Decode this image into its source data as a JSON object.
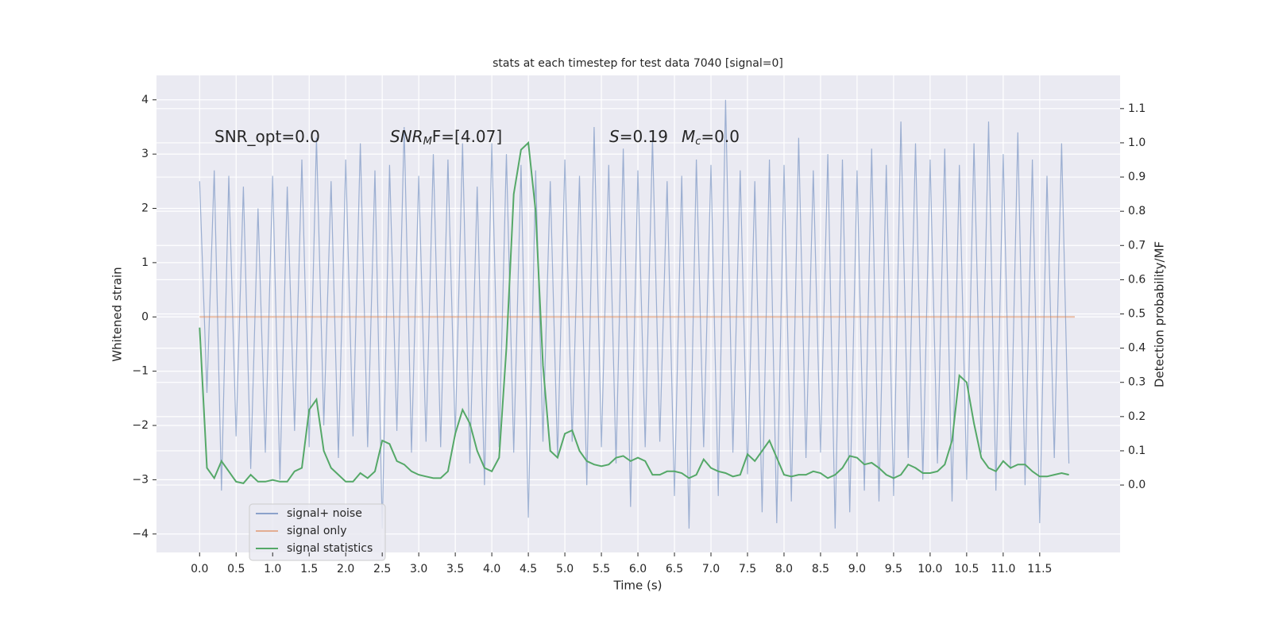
{
  "chart_data": {
    "type": "line",
    "title": "stats at each timestep for test data 7040 [signal=0]",
    "xlabel": "Time (s)",
    "ylabel": "Whitened strain",
    "y2label": "Detection probability/MF",
    "annotations": [
      {
        "base": "SNR_opt=0.0"
      },
      {
        "base": "SNR",
        "sub": "M",
        "tail": "F=[4.07]"
      },
      {
        "base": "S",
        "tail": "=0.19"
      },
      {
        "base": "M",
        "sub": "c",
        "tail": "=0.0"
      }
    ],
    "x": [
      0,
      0.1,
      0.2,
      0.3,
      0.4,
      0.5,
      0.6,
      0.7,
      0.8,
      0.9,
      1.0,
      1.1,
      1.2,
      1.3,
      1.4,
      1.5,
      1.6,
      1.7,
      1.8,
      1.9,
      2.0,
      2.1,
      2.2,
      2.3,
      2.4,
      2.5,
      2.6,
      2.7,
      2.8,
      2.9,
      3.0,
      3.1,
      3.2,
      3.3,
      3.4,
      3.5,
      3.6,
      3.7,
      3.8,
      3.9,
      4.0,
      4.1,
      4.2,
      4.3,
      4.4,
      4.5,
      4.6,
      4.7,
      4.8,
      4.9,
      5.0,
      5.1,
      5.2,
      5.3,
      5.4,
      5.5,
      5.6,
      5.7,
      5.8,
      5.9,
      6.0,
      6.1,
      6.2,
      6.3,
      6.4,
      6.5,
      6.6,
      6.7,
      6.8,
      6.9,
      7.0,
      7.1,
      7.2,
      7.3,
      7.4,
      7.5,
      7.6,
      7.7,
      7.8,
      7.9,
      8.0,
      8.1,
      8.2,
      8.3,
      8.4,
      8.5,
      8.6,
      8.7,
      8.8,
      8.9,
      9.0,
      9.1,
      9.2,
      9.3,
      9.4,
      9.5,
      9.6,
      9.7,
      9.8,
      9.9,
      10.0,
      10.1,
      10.2,
      10.3,
      10.4,
      10.5,
      10.6,
      10.7,
      10.8,
      10.9,
      11.0,
      11.1,
      11.2,
      11.3,
      11.4,
      11.5,
      11.6,
      11.7,
      11.8,
      11.9
    ],
    "series": [
      {
        "name": "signal+ noise",
        "color": "#4c72b0",
        "axis": "y",
        "values": [
          2.5,
          -1.4,
          2.7,
          -3.2,
          2.6,
          -2.2,
          2.4,
          -2.8,
          2.0,
          -2.5,
          2.6,
          -3.0,
          2.4,
          -2.1,
          2.9,
          -2.4,
          3.3,
          -2.0,
          2.5,
          -2.6,
          2.9,
          -2.2,
          3.2,
          -2.4,
          2.7,
          -3.9,
          2.8,
          -2.1,
          3.5,
          -2.5,
          2.6,
          -2.3,
          3.0,
          -2.4,
          2.9,
          -2.2,
          3.2,
          -2.7,
          2.4,
          -3.1,
          3.2,
          -2.4,
          3.0,
          -2.5,
          2.8,
          -3.7,
          2.7,
          -2.3,
          2.5,
          -2.6,
          2.9,
          -2.3,
          2.6,
          -3.1,
          3.5,
          -2.4,
          2.8,
          -2.7,
          3.1,
          -3.5,
          2.7,
          -2.4,
          3.3,
          -2.3,
          2.5,
          -3.3,
          2.6,
          -3.9,
          2.9,
          -2.4,
          2.8,
          -3.3,
          4.0,
          -2.5,
          2.7,
          -2.9,
          2.5,
          -3.6,
          2.9,
          -3.8,
          2.8,
          -3.4,
          3.3,
          -2.6,
          2.7,
          -2.5,
          3.0,
          -3.9,
          2.9,
          -3.6,
          2.7,
          -3.2,
          3.1,
          -3.4,
          2.8,
          -3.3,
          3.6,
          -2.6,
          3.2,
          -3.0,
          2.9,
          -2.7,
          3.1,
          -3.4,
          2.8,
          -3.0,
          3.2,
          -2.5,
          3.6,
          -3.2,
          3.0,
          -2.8,
          3.4,
          -3.1,
          2.9,
          -3.8,
          2.6,
          -2.6,
          3.2,
          -2.7
        ]
      },
      {
        "name": "signal only",
        "color": "#dd8452",
        "axis": "y",
        "x": [
          0,
          11.98
        ],
        "values": [
          0,
          0
        ]
      },
      {
        "name": "signal statistics",
        "color": "#55a868",
        "axis": "y2",
        "values": [
          0.46,
          0.05,
          0.02,
          0.07,
          0.04,
          0.01,
          0.005,
          0.03,
          0.01,
          0.01,
          0.015,
          0.01,
          0.01,
          0.04,
          0.05,
          0.22,
          0.25,
          0.1,
          0.05,
          0.03,
          0.01,
          0.01,
          0.035,
          0.02,
          0.04,
          0.13,
          0.12,
          0.07,
          0.06,
          0.04,
          0.03,
          0.025,
          0.02,
          0.02,
          0.04,
          0.15,
          0.22,
          0.18,
          0.1,
          0.05,
          0.04,
          0.08,
          0.4,
          0.85,
          0.98,
          1.0,
          0.8,
          0.35,
          0.1,
          0.08,
          0.15,
          0.16,
          0.1,
          0.07,
          0.06,
          0.055,
          0.06,
          0.08,
          0.085,
          0.07,
          0.08,
          0.07,
          0.03,
          0.03,
          0.04,
          0.04,
          0.035,
          0.02,
          0.03,
          0.075,
          0.05,
          0.04,
          0.035,
          0.025,
          0.03,
          0.09,
          0.07,
          0.1,
          0.13,
          0.08,
          0.03,
          0.025,
          0.03,
          0.03,
          0.04,
          0.035,
          0.02,
          0.03,
          0.05,
          0.085,
          0.08,
          0.06,
          0.065,
          0.05,
          0.03,
          0.02,
          0.03,
          0.06,
          0.05,
          0.035,
          0.035,
          0.04,
          0.06,
          0.13,
          0.32,
          0.3,
          0.18,
          0.08,
          0.05,
          0.04,
          0.07,
          0.05,
          0.06,
          0.06,
          0.04,
          0.025,
          0.025,
          0.03,
          0.035,
          0.03
        ]
      }
    ],
    "xlim": [
      -0.59,
      12.6
    ],
    "ylim": [
      -4.34,
      4.45
    ],
    "y2lim": [
      -0.197,
      1.197
    ],
    "xticks": [
      {
        "value": 0,
        "label": "0.0"
      },
      {
        "value": 0.5,
        "label": "0.5"
      },
      {
        "value": 1,
        "label": "1.0"
      },
      {
        "value": 1.5,
        "label": "1.5"
      },
      {
        "value": 2,
        "label": "2.0"
      },
      {
        "value": 2.5,
        "label": "2.5"
      },
      {
        "value": 3,
        "label": "3.0"
      },
      {
        "value": 3.5,
        "label": "3.5"
      },
      {
        "value": 4,
        "label": "4.0"
      },
      {
        "value": 4.5,
        "label": "4.5"
      },
      {
        "value": 5,
        "label": "5.0"
      },
      {
        "value": 5.5,
        "label": "5.5"
      },
      {
        "value": 6,
        "label": "6.0"
      },
      {
        "value": 6.5,
        "label": "6.5"
      },
      {
        "value": 7,
        "label": "7.0"
      },
      {
        "value": 7.5,
        "label": "7.5"
      },
      {
        "value": 8,
        "label": "8.0"
      },
      {
        "value": 8.5,
        "label": "8.5"
      },
      {
        "value": 9,
        "label": "9.0"
      },
      {
        "value": 9.5,
        "label": "9.5"
      },
      {
        "value": 10,
        "label": "10.0"
      },
      {
        "value": 10.5,
        "label": "10.5"
      },
      {
        "value": 11,
        "label": "11.0"
      },
      {
        "value": 11.5,
        "label": "11.5"
      }
    ],
    "yticks": [
      {
        "value": -4,
        "label": "−4"
      },
      {
        "value": -3,
        "label": "−3"
      },
      {
        "value": -2,
        "label": "−2"
      },
      {
        "value": -1,
        "label": "−1"
      },
      0,
      1,
      2,
      3,
      4
    ],
    "y2ticks": [
      {
        "value": 0,
        "label": "0.0"
      },
      {
        "value": 0.1,
        "label": "0.1"
      },
      {
        "value": 0.2,
        "label": "0.2"
      },
      {
        "value": 0.3,
        "label": "0.3"
      },
      {
        "value": 0.4,
        "label": "0.4"
      },
      {
        "value": 0.5,
        "label": "0.5"
      },
      {
        "value": 0.6,
        "label": "0.6"
      },
      {
        "value": 0.7,
        "label": "0.7"
      },
      {
        "value": 0.8,
        "label": "0.8"
      },
      {
        "value": 0.9,
        "label": "0.9"
      },
      {
        "value": 1,
        "label": "1.0"
      },
      {
        "value": 1.1,
        "label": "1.1"
      }
    ],
    "grid": true,
    "legend": "lower left"
  }
}
